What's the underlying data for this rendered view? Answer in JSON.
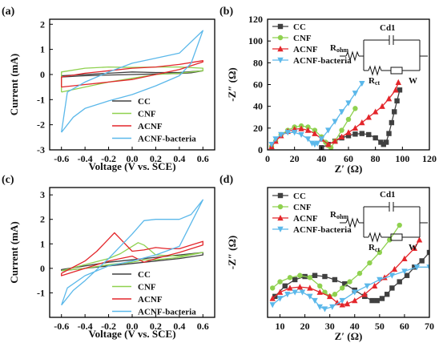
{
  "colors": {
    "CC": "#404040",
    "CNF": "#8fd14f",
    "ACNF": "#e3262b",
    "ACNF-bacteria": "#5bb8ea",
    "axis": "#000000"
  },
  "chart_data": [
    {
      "panel_label": "(a)",
      "type": "line",
      "xlabel": "Voltage (V vs. SCE)",
      "ylabel": "Current (mA)",
      "xlim": [
        -0.7,
        0.7
      ],
      "ylim": [
        -3,
        2.2
      ],
      "xticks": [
        "-0.6",
        "-0.4",
        "-0.2",
        "0.0",
        "0.2",
        "0.4",
        "0.6"
      ],
      "xtick_values": [
        -0.6,
        -0.4,
        -0.2,
        0.0,
        0.2,
        0.4,
        0.6
      ],
      "yticks": [
        "2",
        "1",
        "0",
        "-1",
        "-2",
        "-3"
      ],
      "ytick_values": [
        2,
        1,
        0,
        -1,
        -2,
        -3
      ],
      "legend_position": "bottom-right",
      "legend": [
        "CC",
        "CNF",
        "ACNF",
        "ACNF-bacteria"
      ],
      "series": [
        {
          "name": "CC",
          "marker": "none",
          "x": [
            -0.6,
            -0.4,
            -0.2,
            0,
            0.2,
            0.4,
            0.5,
            0.6,
            0.6,
            0.4,
            0.2,
            0,
            -0.2,
            -0.4,
            -0.6,
            -0.6
          ],
          "y": [
            -0.1,
            -0.05,
            -0.02,
            0.0,
            0.02,
            0.04,
            0.07,
            0.15,
            0.15,
            0.08,
            0.08,
            0.1,
            0.05,
            0.0,
            -0.05,
            -0.1
          ]
        },
        {
          "name": "CNF",
          "marker": "none",
          "x": [
            -0.6,
            -0.4,
            -0.2,
            0,
            0.2,
            0.4,
            0.6,
            0.6,
            0.4,
            0.2,
            0,
            -0.2,
            -0.4,
            -0.6,
            -0.6
          ],
          "y": [
            -0.7,
            -0.5,
            -0.3,
            -0.15,
            0.0,
            0.05,
            0.15,
            0.25,
            0.3,
            0.3,
            0.28,
            0.3,
            0.25,
            0.1,
            -0.7
          ]
        },
        {
          "name": "ACNF",
          "marker": "none",
          "x": [
            -0.6,
            -0.4,
            -0.2,
            0,
            0.2,
            0.4,
            0.6,
            0.6,
            0.4,
            0.2,
            0,
            -0.2,
            -0.4,
            -0.6,
            -0.6
          ],
          "y": [
            -0.5,
            -0.4,
            -0.3,
            -0.2,
            0.0,
            0.2,
            0.5,
            0.55,
            0.4,
            0.3,
            0.25,
            0.15,
            0.05,
            -0.1,
            -0.5
          ]
        },
        {
          "name": "ACNF-bacteria",
          "marker": "none",
          "x": [
            -0.6,
            -0.5,
            -0.4,
            -0.2,
            0,
            0.2,
            0.4,
            0.5,
            0.6,
            0.6,
            0.4,
            0.2,
            0,
            -0.2,
            -0.4,
            -0.55,
            -0.6
          ],
          "y": [
            -2.3,
            -1.7,
            -1.35,
            -1.05,
            -0.8,
            -0.45,
            -0.05,
            0.45,
            1.75,
            1.75,
            0.85,
            0.65,
            0.45,
            0.1,
            -0.3,
            -0.7,
            -2.3
          ]
        }
      ]
    },
    {
      "panel_label": "(b)",
      "type": "scatter",
      "xlabel": "Z′ (Ω)",
      "ylabel": "-Z″ (Ω)",
      "xlim": [
        0,
        120
      ],
      "ylim": [
        0,
        120
      ],
      "xticks": [
        "0",
        "20",
        "40",
        "60",
        "80",
        "100",
        "120"
      ],
      "xtick_values": [
        0,
        20,
        40,
        60,
        80,
        100,
        120
      ],
      "yticks": [
        "120",
        "100",
        "80",
        "60",
        "40",
        "20",
        "0"
      ],
      "ytick_values": [
        120,
        100,
        80,
        60,
        40,
        20,
        0
      ],
      "legend_position": "top-left",
      "legend": [
        "CC",
        "CNF",
        "ACNF",
        "ACNF-bacteria"
      ],
      "inset_circuit": {
        "r_ohm": "R",
        "r_ohm_sub": "ohm",
        "cdl": "Cd1",
        "r_ct": "R",
        "r_ct_sub": "ct",
        "w": "W"
      },
      "series": [
        {
          "name": "CC",
          "marker": "square",
          "x": [
            40,
            45,
            50,
            55,
            60,
            65,
            70,
            75,
            80,
            84,
            86,
            88,
            90,
            92,
            94,
            96,
            98
          ],
          "y": [
            2,
            5,
            8,
            11,
            13,
            14.5,
            15,
            14,
            11,
            7,
            5,
            7,
            15,
            25,
            35,
            45,
            55
          ]
        },
        {
          "name": "CNF",
          "marker": "circle",
          "x": [
            3,
            6,
            10,
            15,
            20,
            25,
            30,
            35,
            40,
            43,
            45,
            47,
            50,
            55,
            60,
            65
          ],
          "y": [
            3,
            8,
            14,
            18,
            21,
            22,
            21,
            18,
            12,
            7,
            4,
            2,
            8,
            18,
            28,
            38
          ]
        },
        {
          "name": "ACNF",
          "marker": "triangle",
          "x": [
            3,
            6,
            10,
            15,
            20,
            25,
            30,
            35,
            40,
            45,
            50,
            55,
            60,
            65,
            70,
            75,
            80,
            85,
            90,
            95,
            97
          ],
          "y": [
            3,
            8,
            13,
            17,
            19,
            19.5,
            18,
            15,
            10,
            5,
            8,
            12,
            16,
            20,
            25,
            30,
            35,
            40,
            47,
            55,
            62
          ]
        },
        {
          "name": "ACNF-bacteria",
          "marker": "triangle-down",
          "x": [
            3,
            6,
            10,
            15,
            20,
            25,
            30,
            33,
            35,
            37,
            40,
            45,
            50,
            55,
            60,
            65,
            70
          ],
          "y": [
            5,
            10,
            14,
            16,
            16,
            14,
            10,
            6,
            5,
            6,
            10,
            18,
            26,
            35,
            43,
            52,
            61
          ]
        }
      ]
    },
    {
      "panel_label": "(c)",
      "type": "line",
      "xlabel": "Voltage (V vs. SCE)",
      "ylabel": "Current (mA)",
      "xlim": [
        -0.7,
        0.7
      ],
      "ylim": [
        -2.0,
        3.3
      ],
      "xticks": [
        "-0.6",
        "-0.4",
        "-0.2",
        "0.0",
        "0.2",
        "0.4",
        "0.6"
      ],
      "xtick_values": [
        -0.6,
        -0.4,
        -0.2,
        0.0,
        0.2,
        0.4,
        0.6
      ],
      "yticks": [
        "3",
        "2",
        "1",
        "0",
        "-1"
      ],
      "ytick_values": [
        3,
        2,
        1,
        0,
        -1
      ],
      "legend_position": "bottom-right",
      "legend": [
        "CC",
        "CNF",
        "ACNF",
        "ACNF-bacteria"
      ],
      "series": [
        {
          "name": "CC",
          "marker": "none",
          "x": [
            -0.6,
            -0.4,
            -0.2,
            0,
            0.2,
            0.4,
            0.6,
            0.6,
            0.4,
            0.2,
            0,
            -0.2,
            -0.4,
            -0.6,
            -0.6
          ],
          "y": [
            -0.1,
            0.0,
            0.1,
            0.2,
            0.3,
            0.4,
            0.55,
            0.65,
            0.55,
            0.45,
            0.35,
            0.25,
            0.1,
            -0.05,
            -0.1
          ]
        },
        {
          "name": "CNF",
          "marker": "none",
          "x": [
            -0.6,
            -0.4,
            -0.2,
            -0.1,
            0,
            0.05,
            0.1,
            0.2,
            0.4,
            0.6,
            0.6,
            0.4,
            0.2,
            0.1,
            0,
            -0.2,
            -0.4,
            -0.6,
            -0.6
          ],
          "y": [
            -0.1,
            0.15,
            0.4,
            0.6,
            0.9,
            1.05,
            0.95,
            0.55,
            0.5,
            0.65,
            0.65,
            0.45,
            0.35,
            0.35,
            0.25,
            0.15,
            0.0,
            -0.1,
            -0.1
          ]
        },
        {
          "name": "ACNF",
          "marker": "none",
          "x": [
            -0.6,
            -0.4,
            -0.3,
            -0.2,
            -0.15,
            -0.1,
            0,
            0.1,
            0.2,
            0.3,
            0.4,
            0.5,
            0.6,
            0.6,
            0.4,
            0.2,
            0.1,
            0,
            -0.1,
            -0.2,
            -0.4,
            -0.6,
            -0.6
          ],
          "y": [
            -0.2,
            0.3,
            0.7,
            1.2,
            1.45,
            1.2,
            0.7,
            0.75,
            0.85,
            0.8,
            0.8,
            0.95,
            1.1,
            0.95,
            0.65,
            0.4,
            0.25,
            0.5,
            0.4,
            0.3,
            0.0,
            -0.3,
            -0.2
          ]
        },
        {
          "name": "ACNF-bacteria",
          "marker": "none",
          "x": [
            -0.6,
            -0.5,
            -0.4,
            -0.2,
            0,
            0.1,
            0.2,
            0.4,
            0.5,
            0.6,
            0.6,
            0.4,
            0.2,
            0,
            -0.2,
            -0.4,
            -0.55,
            -0.6
          ],
          "y": [
            -1.5,
            -0.9,
            -0.5,
            0.4,
            1.4,
            1.95,
            2.0,
            2.0,
            2.2,
            2.8,
            2.8,
            0.9,
            0.55,
            0.3,
            0.1,
            -0.3,
            -0.8,
            -1.5
          ]
        }
      ]
    },
    {
      "panel_label": "(d)",
      "type": "scatter",
      "xlabel": "Z′ (Ω)",
      "ylabel": "-Z″ (Ω)",
      "xlim": [
        5,
        70
      ],
      "ylim": [
        0,
        62
      ],
      "xticks": [
        "10",
        "20",
        "30",
        "40",
        "50",
        "60",
        "70"
      ],
      "xtick_values": [
        10,
        20,
        30,
        40,
        50,
        60,
        70
      ],
      "yticks": [],
      "ytick_values": [],
      "legend_position": "top-left",
      "legend": [
        "CC",
        "CNF",
        "ACNF",
        "ACNF-bacteria"
      ],
      "inset_circuit": {
        "r_ohm": "R",
        "r_ohm_sub": "ohm",
        "cdl": "Cd1",
        "r_ct": "R",
        "r_ct_sub": "ct",
        "w": "W"
      },
      "series": [
        {
          "name": "CC",
          "marker": "square",
          "x": [
            8,
            12,
            16,
            20,
            24,
            28,
            32,
            36,
            40,
            44,
            47,
            49,
            51,
            53,
            55,
            58,
            61,
            64,
            67,
            70
          ],
          "y": [
            10,
            15,
            18,
            19.5,
            20,
            19.5,
            18,
            16,
            13,
            10,
            8,
            8,
            9,
            11,
            14,
            17,
            20,
            24,
            27,
            31
          ]
        },
        {
          "name": "CNF",
          "marker": "circle",
          "x": [
            7,
            10,
            14,
            18,
            22,
            26,
            28,
            30,
            32,
            35,
            38,
            42,
            46,
            50,
            54,
            58
          ],
          "y": [
            14,
            17,
            19,
            20,
            19,
            15,
            12,
            10,
            11,
            14,
            17,
            21,
            26,
            31,
            37,
            44
          ]
        },
        {
          "name": "ACNF",
          "marker": "triangle",
          "x": [
            7,
            10,
            14,
            18,
            22,
            26,
            30,
            33,
            35,
            37,
            40,
            44,
            48,
            52,
            56,
            60,
            64,
            66
          ],
          "y": [
            9,
            12,
            14,
            14.5,
            14,
            12,
            10,
            7,
            6,
            6.5,
            8,
            11,
            15,
            19,
            23,
            28,
            33,
            37
          ]
        },
        {
          "name": "ACNF-bacteria",
          "marker": "triangle-down",
          "x": [
            7,
            10,
            13,
            16,
            19,
            22,
            24,
            26,
            28,
            31,
            35,
            40,
            45,
            50,
            55,
            60,
            65,
            70
          ],
          "y": [
            6,
            9,
            11,
            12,
            12,
            10,
            8,
            5,
            4,
            5,
            8,
            12,
            15,
            18,
            20,
            22,
            24,
            24
          ]
        }
      ]
    }
  ]
}
